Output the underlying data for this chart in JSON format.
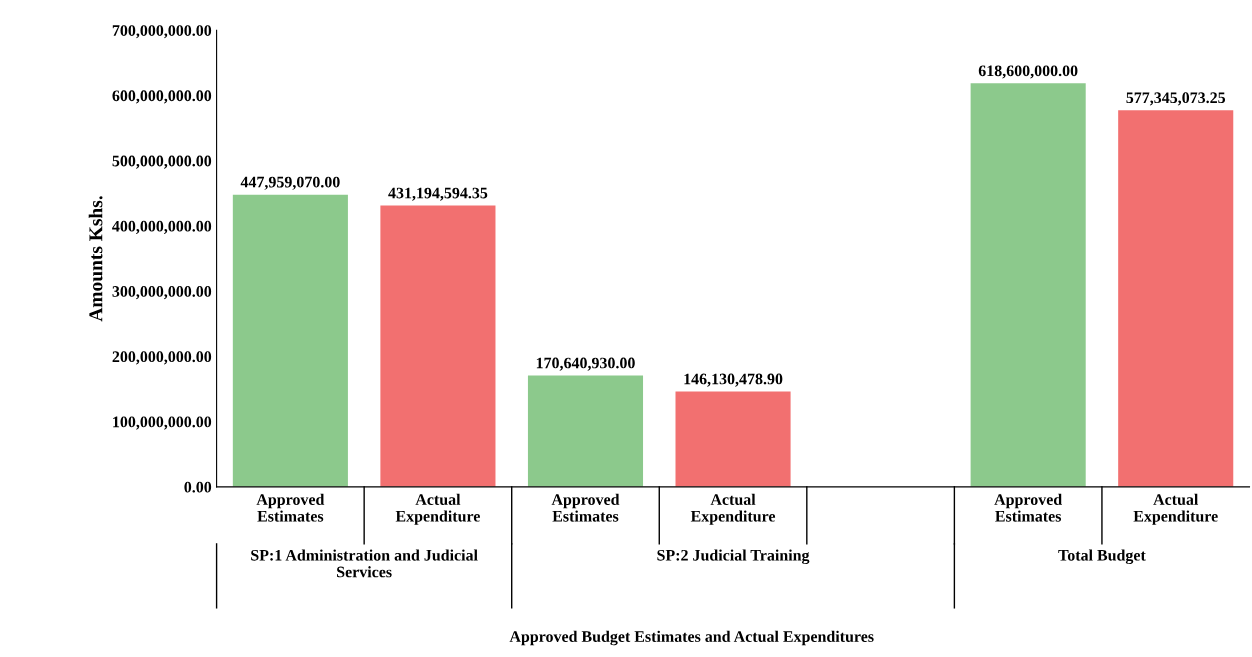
{
  "chart_data": {
    "type": "bar",
    "categories": [
      "Approved Estimates",
      "Actual Expenditure",
      "Approved Estimates",
      "Actual Expenditure",
      null,
      "Approved Estimates",
      "Actual Expenditure"
    ],
    "values": [
      447959070,
      431194594.35,
      170640930,
      146130478.9,
      null,
      618600000,
      577345073.25
    ],
    "colors": [
      "#8cc98c",
      "#f27070",
      "#8cc98c",
      "#f27070",
      "#8cc98c",
      "#8cc98c",
      "#f27070"
    ],
    "value_labels": [
      "447,959,070.00",
      "431,194,594.35",
      "170,640,930.00",
      "146,130,478.90",
      null,
      "618,600,000.00",
      "577,345,073.25"
    ],
    "ylabel": "Amounts Kshs.",
    "annotations": [
      "SP:1 Administration and Judicial Services",
      "SP:2 Judicial Training",
      "Total Budget",
      "Approved Budget Estimates and Actual Expenditures"
    ],
    "ylim": [
      0,
      700000000
    ],
    "yticks": [
      {
        "value": 0,
        "label": "0.00"
      },
      {
        "value": 100000000,
        "label": "100,000,000.00"
      },
      {
        "value": 200000000,
        "label": "200,000,000.00"
      },
      {
        "value": 300000000,
        "label": "300,000,000.00"
      },
      {
        "value": 400000000,
        "label": "400,000,000.00"
      },
      {
        "value": 500000000,
        "label": "500,000,000.00"
      },
      {
        "value": 600000000,
        "label": "600,000,000.00"
      },
      {
        "value": 700000000,
        "label": "700,000,000.00"
      }
    ],
    "grid": false,
    "legend": false
  }
}
